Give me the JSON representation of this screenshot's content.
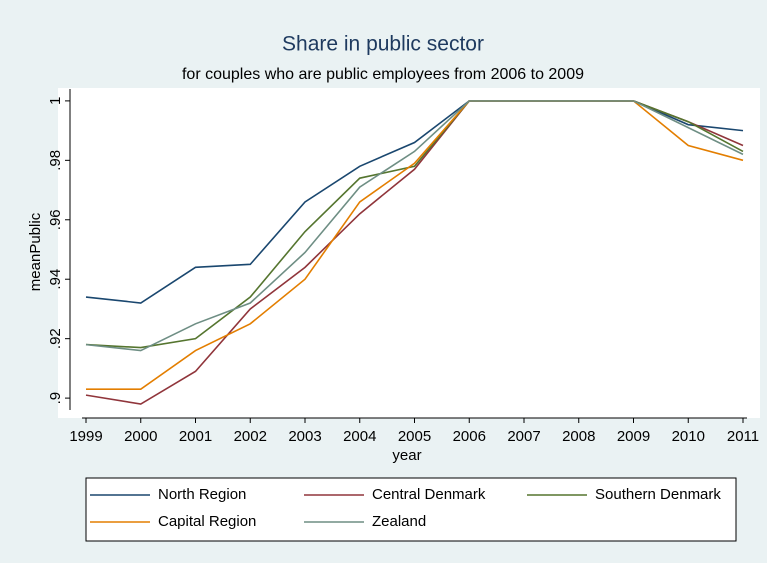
{
  "chart_data": {
    "type": "line",
    "title": "Share in public sector",
    "subtitle": "for couples who are public employees from 2006 to 2009",
    "x_label": "year",
    "y_label": "meanPublic",
    "x": [
      1999,
      2000,
      2001,
      2002,
      2003,
      2004,
      2005,
      2006,
      2007,
      2008,
      2009,
      2010,
      2011
    ],
    "xlim": [
      1999,
      2011
    ],
    "xticks": [
      1999,
      2000,
      2001,
      2002,
      2003,
      2004,
      2005,
      2006,
      2007,
      2008,
      2009,
      2010,
      2011
    ],
    "ylim": [
      0.896,
      1.004
    ],
    "yticks": [
      {
        "value": 0.9,
        "label": ".9"
      },
      {
        "value": 0.92,
        "label": ".92"
      },
      {
        "value": 0.94,
        "label": ".94"
      },
      {
        "value": 0.96,
        "label": ".96"
      },
      {
        "value": 0.98,
        "label": ".98"
      },
      1
    ],
    "grid": false,
    "legend": "bottom",
    "series": [
      {
        "name": "North Region",
        "color": "#1a476f",
        "values": [
          0.934,
          0.932,
          0.944,
          0.945,
          0.966,
          0.978,
          0.986,
          1,
          1,
          1,
          1,
          0.992,
          0.99
        ]
      },
      {
        "name": "Central Denmark",
        "color": "#90353b",
        "values": [
          0.901,
          0.898,
          0.909,
          0.93,
          0.944,
          0.962,
          0.977,
          1,
          1,
          1,
          1,
          0.993,
          0.985
        ]
      },
      {
        "name": "Southern Denmark",
        "color": "#55752f",
        "values": [
          0.918,
          0.917,
          0.92,
          0.934,
          0.956,
          0.974,
          0.978,
          1,
          1,
          1,
          1,
          0.993,
          0.983
        ]
      },
      {
        "name": "Capital Region",
        "color": "#e37e00",
        "values": [
          0.903,
          0.903,
          0.916,
          0.925,
          0.94,
          0.966,
          0.979,
          1,
          1,
          1,
          1,
          0.985,
          0.98
        ]
      },
      {
        "name": "Zealand",
        "color": "#6e8e84",
        "values": [
          0.918,
          0.916,
          0.925,
          0.932,
          0.949,
          0.971,
          0.983,
          1,
          1,
          1,
          1,
          0.991,
          0.982
        ]
      }
    ]
  }
}
